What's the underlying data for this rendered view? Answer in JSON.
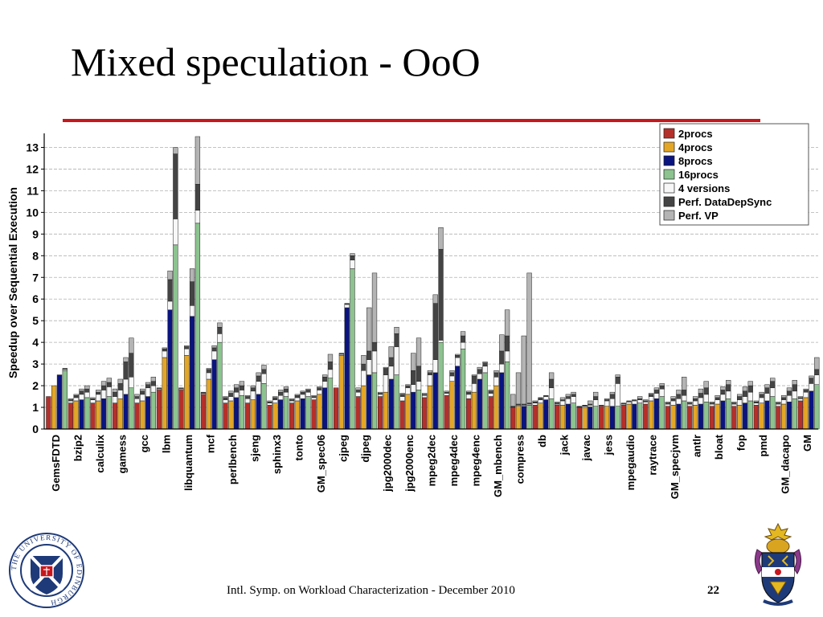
{
  "slide": {
    "title": "Mixed speculation - OoO",
    "footer": "Intl. Symp. on Workload Characterization - December 2010",
    "page_number": "22",
    "logo_left_text": "THE UNIVERSITY OF EDINBURGH"
  },
  "colors": {
    "accent_rule": "#c8161d",
    "2procs": "#b5302a",
    "4procs": "#e3a627",
    "8procs": "#0a1480",
    "16procs": "#8cc38f",
    "4versions": "#f7f7f7",
    "perf_datadepsync": "#444444",
    "perf_vp": "#b4b4b4"
  },
  "chart_data": {
    "type": "bar",
    "subtype": "grouped-stacked",
    "ylabel": "Speedup over Sequential Execution",
    "ylim": [
      0,
      13.5
    ],
    "yticks": [
      0,
      1,
      2,
      3,
      4,
      5,
      6,
      7,
      8,
      9,
      10,
      11,
      12,
      13
    ],
    "grid": true,
    "legend_position": "top-right",
    "legend": [
      "2procs",
      "4procs",
      "8procs",
      "16procs",
      "4 versions",
      "Perf. DataDepSync",
      "Perf. VP"
    ],
    "base_series": [
      "2procs",
      "4procs",
      "8procs",
      "16procs"
    ],
    "stack_layers": [
      "4 versions",
      "Perf. DataDepSync",
      "Perf. VP"
    ],
    "categories": [
      "GemsFDTD",
      "bzip2",
      "calculix",
      "gamess",
      "gcc",
      "lbm",
      "libquantum",
      "mcf",
      "perlbench",
      "sjeng",
      "sphinx3",
      "tonto",
      "GM_spec06",
      "cjpeg",
      "djpeg",
      "jpg2000dec",
      "jpg2000enc",
      "mpeg2dec",
      "mpeg4dec",
      "mpeg4enc",
      "GM_mbench",
      "compress",
      "db",
      "jack",
      "javac",
      "jess",
      "mpegaudio",
      "raytrace",
      "GM_specjvm",
      "antlr",
      "bloat",
      "fop",
      "pmd",
      "GM_dacapo",
      "GM"
    ],
    "bars": [
      [
        [
          1.5,
          1.5,
          1.5,
          1.5
        ],
        [
          2.0,
          2.0,
          2.0,
          2.0
        ],
        [
          2.5,
          2.5,
          2.5,
          2.5
        ],
        [
          2.7,
          2.75,
          2.8,
          2.8
        ]
      ],
      [
        [
          1.2,
          1.3,
          1.35,
          1.4
        ],
        [
          1.3,
          1.45,
          1.55,
          1.6
        ],
        [
          1.35,
          1.6,
          1.75,
          1.85
        ],
        [
          1.45,
          1.7,
          1.85,
          2.0
        ]
      ],
      [
        [
          1.2,
          1.35,
          1.4,
          1.45
        ],
        [
          1.3,
          1.6,
          1.7,
          1.8
        ],
        [
          1.4,
          1.8,
          2.0,
          2.2
        ],
        [
          1.5,
          1.95,
          2.15,
          2.35
        ]
      ],
      [
        [
          1.2,
          1.5,
          1.7,
          1.85
        ],
        [
          1.4,
          1.8,
          2.1,
          2.3
        ],
        [
          1.6,
          2.3,
          3.1,
          3.3
        ],
        [
          1.9,
          2.4,
          3.5,
          4.2
        ]
      ],
      [
        [
          1.2,
          1.4,
          1.5,
          1.6
        ],
        [
          1.3,
          1.6,
          1.75,
          1.85
        ],
        [
          1.5,
          1.9,
          2.05,
          2.15
        ],
        [
          1.7,
          2.0,
          2.2,
          2.4
        ]
      ],
      [
        [
          1.8,
          1.85,
          1.9,
          1.9
        ],
        [
          3.3,
          3.6,
          3.7,
          3.75
        ],
        [
          5.5,
          5.9,
          6.9,
          7.3
        ],
        [
          8.5,
          9.7,
          12.7,
          13.0
        ]
      ],
      [
        [
          1.8,
          1.85,
          1.9,
          1.9
        ],
        [
          3.4,
          3.7,
          3.8,
          3.85
        ],
        [
          5.2,
          5.7,
          6.8,
          7.4
        ],
        [
          9.5,
          10.1,
          11.3,
          13.5
        ]
      ],
      [
        [
          1.6,
          1.65,
          1.7,
          1.7
        ],
        [
          2.3,
          2.6,
          2.75,
          2.8
        ],
        [
          3.2,
          3.6,
          3.75,
          3.85
        ],
        [
          4.0,
          4.4,
          4.7,
          4.9
        ]
      ],
      [
        [
          1.2,
          1.35,
          1.45,
          1.5
        ],
        [
          1.3,
          1.5,
          1.65,
          1.75
        ],
        [
          1.45,
          1.7,
          1.9,
          2.05
        ],
        [
          1.55,
          1.8,
          2.0,
          2.2
        ]
      ],
      [
        [
          1.2,
          1.4,
          1.5,
          1.55
        ],
        [
          1.35,
          1.75,
          1.9,
          2.0
        ],
        [
          1.6,
          2.2,
          2.45,
          2.6
        ],
        [
          2.1,
          2.55,
          2.75,
          2.95
        ]
      ],
      [
        [
          1.1,
          1.2,
          1.25,
          1.3
        ],
        [
          1.2,
          1.35,
          1.45,
          1.5
        ],
        [
          1.35,
          1.55,
          1.7,
          1.8
        ],
        [
          1.5,
          1.7,
          1.85,
          1.95
        ]
      ],
      [
        [
          1.2,
          1.3,
          1.35,
          1.4
        ],
        [
          1.3,
          1.45,
          1.55,
          1.6
        ],
        [
          1.4,
          1.6,
          1.7,
          1.75
        ],
        [
          1.5,
          1.7,
          1.8,
          1.85
        ]
      ],
      [
        [
          1.35,
          1.45,
          1.5,
          1.55
        ],
        [
          1.6,
          1.8,
          1.9,
          1.95
        ],
        [
          1.9,
          2.2,
          2.4,
          2.5
        ],
        [
          2.35,
          2.75,
          3.1,
          3.45
        ]
      ],
      [
        [
          1.9,
          1.9,
          1.9,
          1.9
        ],
        [
          3.4,
          3.45,
          3.5,
          3.5
        ],
        [
          5.6,
          5.75,
          5.8,
          5.8
        ],
        [
          7.4,
          7.8,
          8.0,
          8.1
        ]
      ],
      [
        [
          1.5,
          1.7,
          1.8,
          1.9
        ],
        [
          2.0,
          2.7,
          3.0,
          3.4
        ],
        [
          2.5,
          3.2,
          3.6,
          5.6
        ],
        [
          2.6,
          3.6,
          4.0,
          7.2
        ]
      ],
      [
        [
          1.5,
          1.6,
          1.65,
          1.7
        ],
        [
          1.7,
          2.5,
          2.8,
          2.85
        ],
        [
          2.3,
          2.9,
          3.3,
          3.8
        ],
        [
          2.5,
          3.8,
          4.4,
          4.7
        ]
      ],
      [
        [
          1.3,
          1.5,
          1.6,
          1.65
        ],
        [
          1.6,
          1.9,
          2.0,
          2.05
        ],
        [
          1.7,
          2.05,
          2.7,
          3.5
        ],
        [
          1.8,
          2.2,
          2.9,
          4.2
        ]
      ],
      [
        [
          1.45,
          1.55,
          1.6,
          1.65
        ],
        [
          2.0,
          2.5,
          2.6,
          2.7
        ],
        [
          2.6,
          3.2,
          5.8,
          6.2
        ],
        [
          4.0,
          4.1,
          8.3,
          9.3
        ]
      ],
      [
        [
          1.55,
          1.65,
          1.7,
          1.75
        ],
        [
          2.2,
          2.45,
          2.6,
          2.7
        ],
        [
          2.9,
          3.3,
          3.4,
          3.45
        ],
        [
          3.7,
          4.0,
          4.3,
          4.5
        ]
      ],
      [
        [
          1.4,
          1.6,
          1.7,
          1.75
        ],
        [
          1.7,
          2.1,
          2.45,
          2.5
        ],
        [
          2.3,
          2.55,
          2.75,
          2.85
        ],
        [
          2.6,
          2.9,
          3.05,
          3.1
        ]
      ],
      [
        [
          1.5,
          1.65,
          1.75,
          1.8
        ],
        [
          2.0,
          2.4,
          2.6,
          2.7
        ],
        [
          2.6,
          3.0,
          3.6,
          4.35
        ],
        [
          3.1,
          3.6,
          4.3,
          5.5
        ]
      ],
      [
        [
          1.0,
          1.02,
          1.05,
          1.6
        ],
        [
          1.05,
          1.1,
          1.15,
          2.6
        ],
        [
          1.05,
          1.1,
          1.15,
          4.3
        ],
        [
          1.1,
          1.15,
          1.2,
          7.2
        ]
      ],
      [
        [
          1.1,
          1.2,
          1.25,
          1.3
        ],
        [
          1.2,
          1.35,
          1.45,
          1.45
        ],
        [
          1.35,
          1.5,
          1.55,
          1.55
        ],
        [
          1.4,
          1.9,
          2.3,
          2.6
        ]
      ],
      [
        [
          1.1,
          1.15,
          1.2,
          1.25
        ],
        [
          1.1,
          1.3,
          1.35,
          1.45
        ],
        [
          1.15,
          1.4,
          1.5,
          1.6
        ],
        [
          1.2,
          1.5,
          1.6,
          1.7
        ]
      ],
      [
        [
          1.0,
          1.02,
          1.03,
          1.05
        ],
        [
          1.0,
          1.05,
          1.08,
          1.1
        ],
        [
          1.02,
          1.1,
          1.15,
          1.3
        ],
        [
          1.05,
          1.35,
          1.5,
          1.7
        ]
      ],
      [
        [
          1.05,
          1.08,
          1.1,
          1.1
        ],
        [
          1.05,
          1.3,
          1.35,
          1.4
        ],
        [
          1.05,
          1.4,
          1.6,
          1.7
        ],
        [
          1.05,
          2.1,
          2.4,
          2.5
        ]
      ],
      [
        [
          1.1,
          1.15,
          1.2,
          1.2
        ],
        [
          1.15,
          1.25,
          1.3,
          1.3
        ],
        [
          1.15,
          1.3,
          1.35,
          1.35
        ],
        [
          1.2,
          1.35,
          1.4,
          1.5
        ]
      ],
      [
        [
          1.15,
          1.25,
          1.3,
          1.35
        ],
        [
          1.3,
          1.5,
          1.6,
          1.65
        ],
        [
          1.4,
          1.65,
          1.8,
          1.9
        ],
        [
          1.5,
          1.85,
          2.0,
          2.1
        ]
      ],
      [
        [
          1.05,
          1.15,
          1.2,
          1.25
        ],
        [
          1.1,
          1.3,
          1.4,
          1.5
        ],
        [
          1.15,
          1.4,
          1.6,
          1.8
        ],
        [
          1.3,
          1.55,
          1.8,
          2.4
        ]
      ],
      [
        [
          1.05,
          1.15,
          1.2,
          1.25
        ],
        [
          1.1,
          1.3,
          1.4,
          1.5
        ],
        [
          1.15,
          1.45,
          1.65,
          1.85
        ],
        [
          1.25,
          1.6,
          1.9,
          2.2
        ]
      ],
      [
        [
          1.05,
          1.15,
          1.2,
          1.25
        ],
        [
          1.15,
          1.35,
          1.45,
          1.55
        ],
        [
          1.3,
          1.6,
          1.8,
          1.95
        ],
        [
          1.4,
          1.75,
          2.05,
          2.25
        ]
      ],
      [
        [
          1.05,
          1.15,
          1.2,
          1.25
        ],
        [
          1.1,
          1.35,
          1.5,
          1.6
        ],
        [
          1.2,
          1.5,
          1.75,
          1.95
        ],
        [
          1.3,
          1.7,
          2.0,
          2.2
        ]
      ],
      [
        [
          1.1,
          1.2,
          1.25,
          1.3
        ],
        [
          1.2,
          1.45,
          1.6,
          1.7
        ],
        [
          1.3,
          1.65,
          1.9,
          2.05
        ],
        [
          1.5,
          1.9,
          2.2,
          2.35
        ]
      ],
      [
        [
          1.05,
          1.15,
          1.2,
          1.25
        ],
        [
          1.15,
          1.35,
          1.45,
          1.55
        ],
        [
          1.25,
          1.55,
          1.75,
          1.9
        ],
        [
          1.4,
          1.75,
          2.05,
          2.25
        ]
      ],
      [
        [
          1.3,
          1.4,
          1.45,
          1.5
        ],
        [
          1.45,
          1.7,
          1.8,
          1.85
        ],
        [
          1.75,
          2.1,
          2.35,
          2.45
        ],
        [
          2.05,
          2.5,
          2.75,
          3.3
        ]
      ]
    ]
  }
}
